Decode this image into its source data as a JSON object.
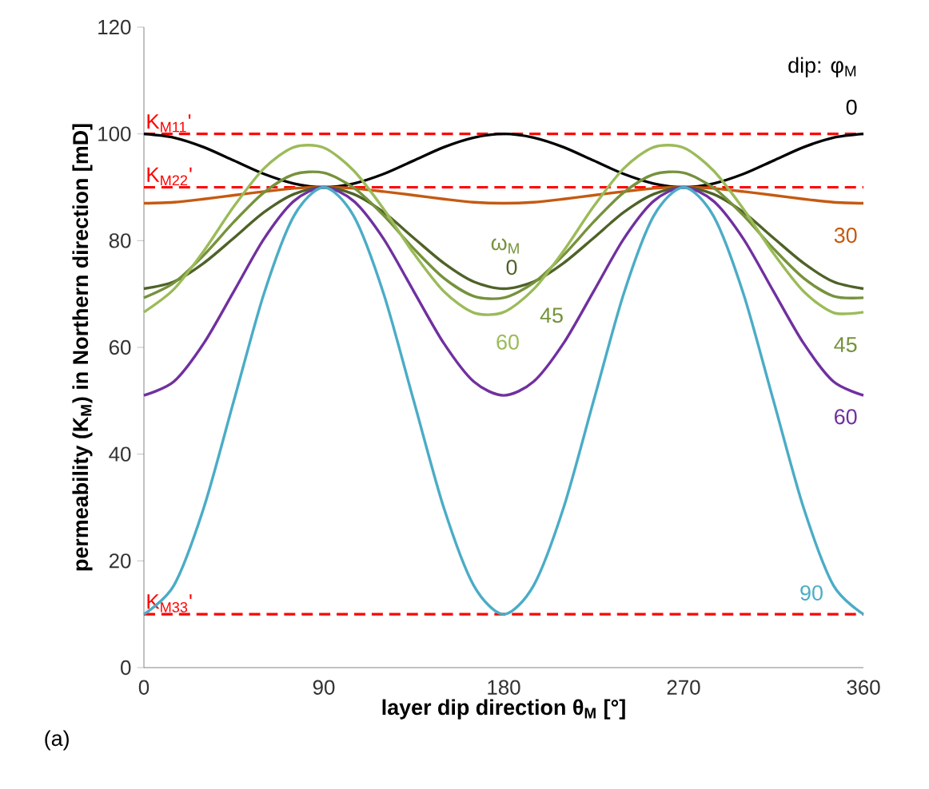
{
  "chart_data": {
    "type": "line",
    "xlabel": "layer dip direction θ$_{M}$ [°]",
    "ylabel": "permeability (K$_{M}$) in Northern direction [mD]",
    "x": [
      0,
      15,
      30,
      45,
      60,
      75,
      90,
      105,
      120,
      135,
      150,
      165,
      180,
      195,
      210,
      225,
      240,
      255,
      270,
      285,
      300,
      315,
      330,
      345,
      360
    ],
    "series": [
      {
        "name": "0",
        "color": "#000000",
        "values": [
          100,
          99.3,
          97.5,
          95,
          92.5,
          90.7,
          90,
          90.7,
          92.5,
          95,
          97.5,
          99.3,
          100,
          99.3,
          97.5,
          95,
          92.5,
          90.7,
          90,
          90.7,
          92.5,
          95,
          97.5,
          99.3,
          100
        ]
      },
      {
        "name": "30",
        "color": "#c55a11",
        "values": [
          87,
          87.2,
          87.8,
          88.5,
          89.2,
          89.8,
          90,
          89.8,
          89.2,
          88.5,
          87.8,
          87.2,
          87,
          87.2,
          87.8,
          88.5,
          89.2,
          89.8,
          90,
          89.8,
          89.2,
          88.5,
          87.8,
          87.2,
          87
        ]
      },
      {
        "name": "0",
        "color": "#4f6228",
        "values": [
          71,
          72.3,
          75.8,
          80.5,
          85.3,
          88.7,
          90,
          88.7,
          85.3,
          80.5,
          75.8,
          72.3,
          71,
          72.3,
          75.8,
          80.5,
          85.3,
          88.7,
          90,
          88.7,
          85.3,
          80.5,
          75.8,
          72.3,
          71
        ]
      },
      {
        "name": "45",
        "color": "#76923c",
        "values": [
          69.3,
          72.1,
          77.3,
          83.5,
          89,
          92.4,
          92.7,
          89.9,
          84.7,
          78.5,
          73,
          69.6,
          69.3,
          72.1,
          77.3,
          83.5,
          89,
          92.4,
          92.7,
          89.9,
          84.7,
          78.5,
          73,
          69.6,
          69.3
        ]
      },
      {
        "name": "60",
        "color": "#9bbb59",
        "values": [
          66.6,
          70.9,
          78.1,
          86.4,
          93.5,
          97.5,
          97.4,
          93.1,
          85.9,
          77.6,
          70.5,
          66.5,
          66.6,
          70.9,
          78.1,
          86.4,
          93.5,
          97.5,
          97.4,
          93.1,
          85.9,
          77.6,
          70.5,
          66.5,
          66.6
        ]
      },
      {
        "name": "60",
        "color": "#7030a0",
        "values": [
          51,
          53.6,
          60.8,
          70.5,
          80.3,
          87.4,
          90,
          87.4,
          80.3,
          70.5,
          60.8,
          53.6,
          51,
          53.6,
          60.8,
          70.5,
          80.3,
          87.4,
          90,
          87.4,
          80.3,
          70.5,
          60.8,
          53.6,
          51
        ]
      },
      {
        "name": "90",
        "color": "#4bacc6",
        "values": [
          10,
          15.4,
          30,
          50,
          70,
          84.6,
          90,
          84.6,
          70,
          50,
          30,
          15.4,
          10,
          15.4,
          30,
          50,
          70,
          84.6,
          90,
          84.6,
          70,
          50,
          30,
          15.4,
          10
        ]
      }
    ],
    "ref_lines": [
      {
        "axis": "y",
        "value": 100,
        "label": "K$_{M11}$'",
        "color": "#ff0000",
        "line_style": "dashed"
      },
      {
        "axis": "y",
        "value": 90,
        "label": "K$_{M22}$'",
        "color": "#ff0000",
        "line_style": "dashed"
      },
      {
        "axis": "y",
        "value": 10,
        "label": "K$_{M33}$'",
        "color": "#ff0000",
        "line_style": "dashed"
      }
    ],
    "annotations": [
      "dip: φ$_{M}$",
      "45",
      "ω$_{M}$",
      "(a)"
    ],
    "xlim": [
      0,
      360
    ],
    "xticks": [
      0,
      90,
      180,
      270,
      360
    ],
    "ylim": [
      0,
      120
    ],
    "yticks": [
      0,
      20,
      40,
      60,
      80,
      100,
      120
    ],
    "grid": false,
    "marker": "none",
    "line_style": "solid"
  }
}
